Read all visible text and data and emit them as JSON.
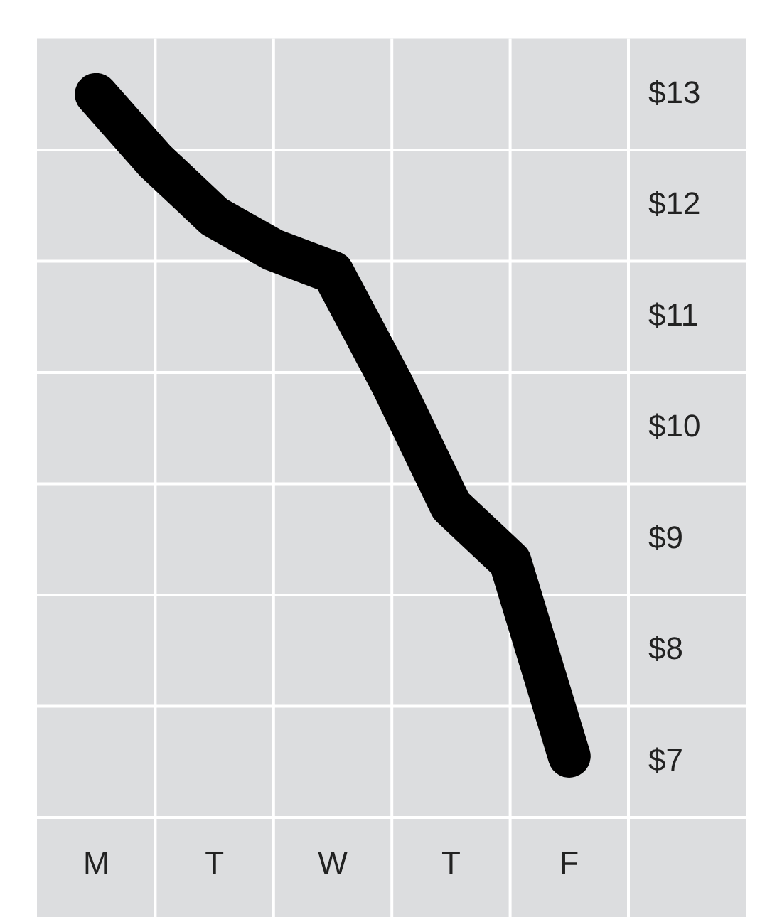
{
  "chart_data": {
    "type": "line",
    "categories": [
      null,
      "M",
      null,
      "T",
      null,
      "W",
      null,
      "T",
      null,
      "F",
      null
    ],
    "series": [
      {
        "color": "#000000",
        "values": [
          null,
          13,
          12.4,
          11.9,
          11.6,
          11.4,
          10.4,
          9.3,
          8.8,
          7.05,
          null
        ]
      }
    ],
    "ylim": [
      6.5,
      13.5
    ],
    "yticks": [
      {
        "value": 7,
        "label": "$7"
      },
      {
        "value": 8,
        "label": "$8"
      },
      {
        "value": 9,
        "label": "$9"
      },
      {
        "value": 10,
        "label": "$10"
      },
      {
        "value": 11,
        "label": "$11"
      },
      {
        "value": 12,
        "label": "$12"
      },
      {
        "value": 13,
        "label": "$13"
      }
    ],
    "grid": true,
    "legend": false,
    "marker": "none",
    "line_style": "solid"
  }
}
